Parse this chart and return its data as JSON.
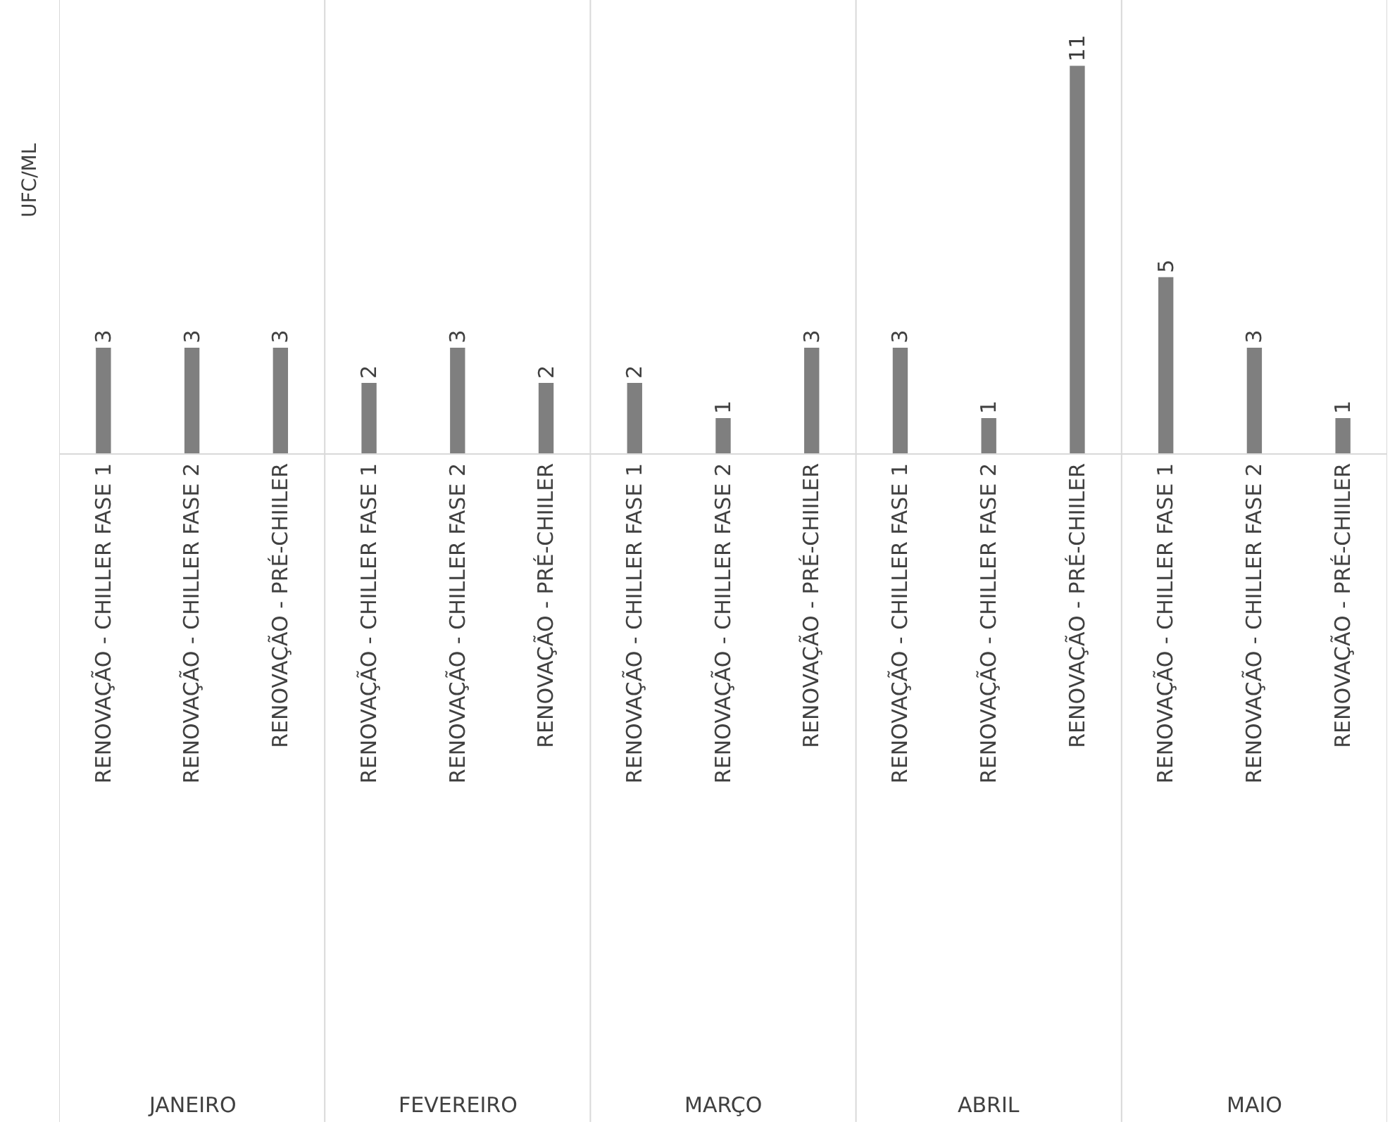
{
  "chart_data": {
    "type": "bar",
    "ylabel": "UFC/ML",
    "categories": [
      "RENOVAÇÃO - CHILLER FASE 1",
      "RENOVAÇÃO - CHILLER FASE 2",
      "RENOVAÇÃO - PRÉ-CHIILER",
      "RENOVAÇÃO - CHILLER FASE 1",
      "RENOVAÇÃO - CHILLER FASE 2",
      "RENOVAÇÃO - PRÉ-CHIILER",
      "RENOVAÇÃO - CHILLER FASE 1",
      "RENOVAÇÃO - CHILLER FASE 2",
      "RENOVAÇÃO - PRÉ-CHIILER",
      "RENOVAÇÃO - CHILLER FASE 1",
      "RENOVAÇÃO - CHILLER FASE 2",
      "RENOVAÇÃO - PRÉ-CHIILER",
      "RENOVAÇÃO - CHILLER FASE 1",
      "RENOVAÇÃO - CHILLER FASE 2",
      "RENOVAÇÃO - PRÉ-CHIILER"
    ],
    "values": [
      3,
      3,
      3,
      2,
      3,
      2,
      2,
      1,
      3,
      3,
      1,
      11,
      5,
      3,
      1
    ],
    "color": "#7f7f7f",
    "data_labels": true,
    "annotations": [
      "JANEIRO",
      "FEVEREIRO",
      "MARÇO",
      "ABRIL",
      "MAIO"
    ]
  }
}
